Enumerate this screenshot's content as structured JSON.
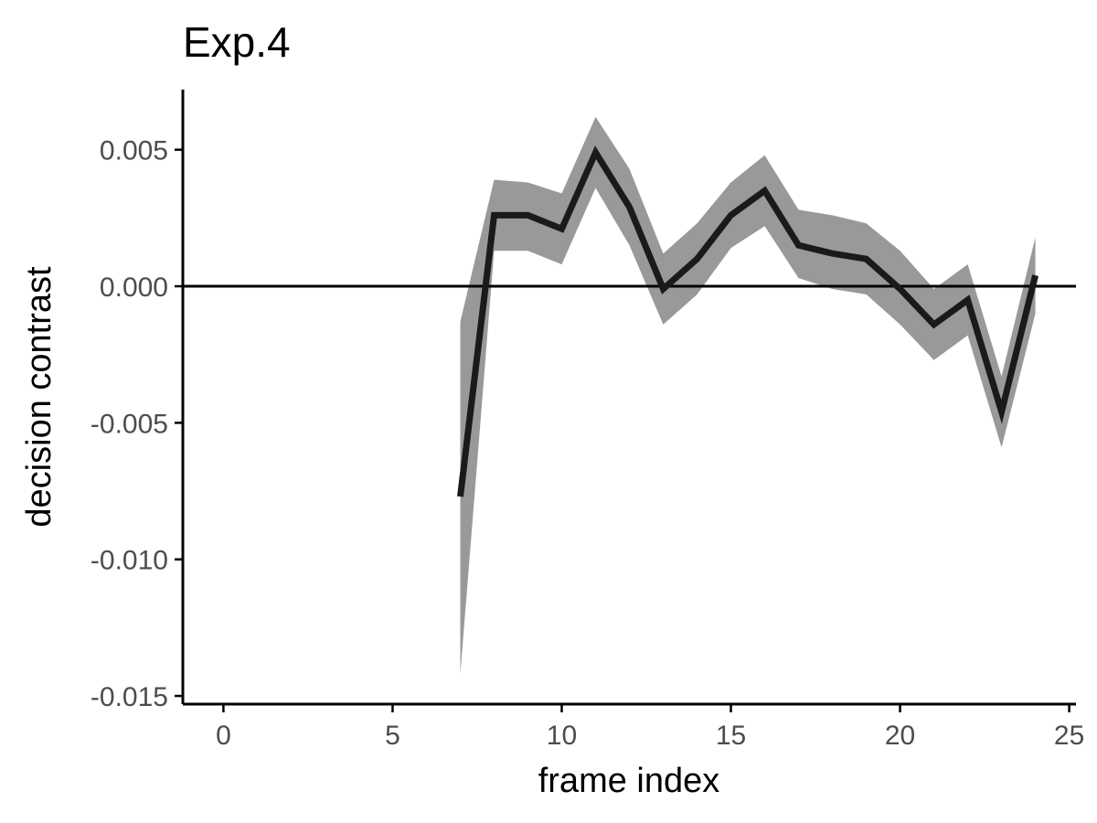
{
  "chart_data": {
    "type": "line",
    "title": "Exp.4",
    "xlabel": "frame index",
    "ylabel": "decision contrast",
    "xlim": [
      -1.2,
      25.2
    ],
    "ylim": [
      -0.0153,
      0.0072
    ],
    "x_ticks": [
      0,
      5,
      10,
      15,
      20,
      25
    ],
    "y_ticks": [
      0.005,
      0.0,
      -0.005,
      -0.01,
      -0.015
    ],
    "x_tick_labels": [
      "0",
      "5",
      "10",
      "15",
      "20",
      "25"
    ],
    "y_tick_labels": [
      "0.005",
      "0.000",
      "-0.005",
      "-0.010",
      "-0.015"
    ],
    "reference_line_y": 0.0,
    "grid": false,
    "legend": "none",
    "series": [
      {
        "x": [
          7,
          8,
          9,
          10,
          11,
          12,
          13,
          14,
          15,
          16,
          17,
          18,
          19,
          20,
          21,
          22,
          23,
          24
        ],
        "y": [
          -0.0077,
          0.0026,
          0.0026,
          0.0021,
          0.0049,
          0.0029,
          -0.0001,
          0.001,
          0.0026,
          0.0035,
          0.0015,
          0.0012,
          0.001,
          -0.0001,
          -0.0014,
          -0.0005,
          -0.0046,
          0.0004
        ],
        "lower": [
          -0.0142,
          0.0013,
          0.0013,
          0.0008,
          0.0036,
          0.0015,
          -0.0014,
          -0.0003,
          0.0014,
          0.0022,
          0.0003,
          -0.0001,
          -0.0003,
          -0.0014,
          -0.0027,
          -0.0018,
          -0.0059,
          -0.001
        ],
        "upper": [
          -0.0013,
          0.0039,
          0.0038,
          0.0034,
          0.0062,
          0.0043,
          0.0012,
          0.0023,
          0.0038,
          0.0048,
          0.0028,
          0.0026,
          0.0023,
          0.0013,
          -0.0001,
          0.0008,
          -0.0033,
          0.0018
        ]
      }
    ],
    "colors": {
      "line": "#1a1a1a",
      "ribbon": "#999999",
      "axis": "#000000",
      "tick_text": "#4d4d4d"
    }
  }
}
